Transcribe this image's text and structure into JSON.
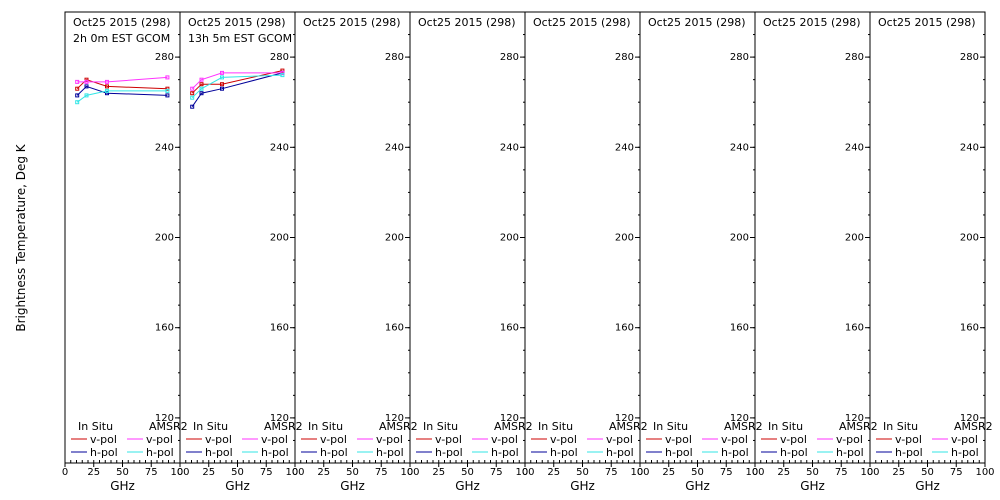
{
  "colors": {
    "insitu_v": "#cc0000",
    "insitu_h": "#000099",
    "amsr2_v": "#ff33ff",
    "amsr2_h": "#33e6e6",
    "axis": "#000000"
  },
  "chart_data": {
    "type": "line",
    "ylabel": "Brightness Temperature, Deg K",
    "xlabel": "GHz",
    "ylim": [
      100,
      300
    ],
    "yticks": [
      120,
      160,
      200,
      240,
      280
    ],
    "xlim": [
      0,
      100
    ],
    "xticks": [
      0,
      25,
      50,
      75,
      100
    ],
    "legend": {
      "insitu_title": "In Situ",
      "amsr2_title": "AMSR2",
      "vpol": "v-pol",
      "hpol": "h-pol"
    },
    "panels": [
      {
        "title": "Oct25 2015 (298)",
        "subtitle": "2h 0m EST GCOM",
        "series": [
          {
            "key": "insitu_v",
            "x": [
              10.65,
              18.7,
              36.5,
              89
            ],
            "y": [
              266,
              270,
              267,
              266
            ]
          },
          {
            "key": "insitu_h",
            "x": [
              10.65,
              18.7,
              36.5,
              89
            ],
            "y": [
              263,
              267,
              264,
              263
            ]
          },
          {
            "key": "amsr2_v",
            "x": [
              10.65,
              18.7,
              36.5,
              89
            ],
            "y": [
              269,
              269,
              269,
              271
            ]
          },
          {
            "key": "amsr2_h",
            "x": [
              10.65,
              18.7,
              36.5,
              89
            ],
            "y": [
              260,
              263,
              265,
              265
            ]
          }
        ]
      },
      {
        "title": "Oct25 2015 (298)",
        "subtitle": "13h 5m EST GCOM",
        "series": [
          {
            "key": "insitu_v",
            "x": [
              10.65,
              18.7,
              36.5,
              89
            ],
            "y": [
              264,
              268,
              268,
              274
            ]
          },
          {
            "key": "insitu_h",
            "x": [
              10.65,
              18.7,
              36.5,
              89
            ],
            "y": [
              258,
              264,
              266,
              273
            ]
          },
          {
            "key": "amsr2_v",
            "x": [
              10.65,
              18.7,
              36.5,
              89
            ],
            "y": [
              266,
              270,
              273,
              273
            ]
          },
          {
            "key": "amsr2_h",
            "x": [
              10.65,
              18.7,
              36.5,
              89
            ],
            "y": [
              262,
              266,
              271,
              272
            ]
          }
        ]
      },
      {
        "title": "Oct25 2015 (298)",
        "subtitle": "",
        "series": []
      },
      {
        "title": "Oct25 2015 (298)",
        "subtitle": "",
        "series": []
      },
      {
        "title": "Oct25 2015 (298)",
        "subtitle": "",
        "series": []
      },
      {
        "title": "Oct25 2015 (298)",
        "subtitle": "",
        "series": []
      },
      {
        "title": "Oct25 2015 (298)",
        "subtitle": "",
        "series": []
      },
      {
        "title": "Oct25 2015 (298)",
        "subtitle": "",
        "series": []
      }
    ]
  }
}
